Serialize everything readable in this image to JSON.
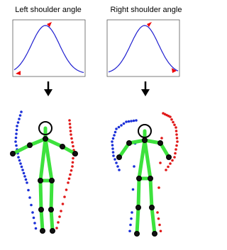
{
  "panels": [
    {
      "title": "Left shoulder angle"
    },
    {
      "title": "Right shoulder angle"
    }
  ]
}
